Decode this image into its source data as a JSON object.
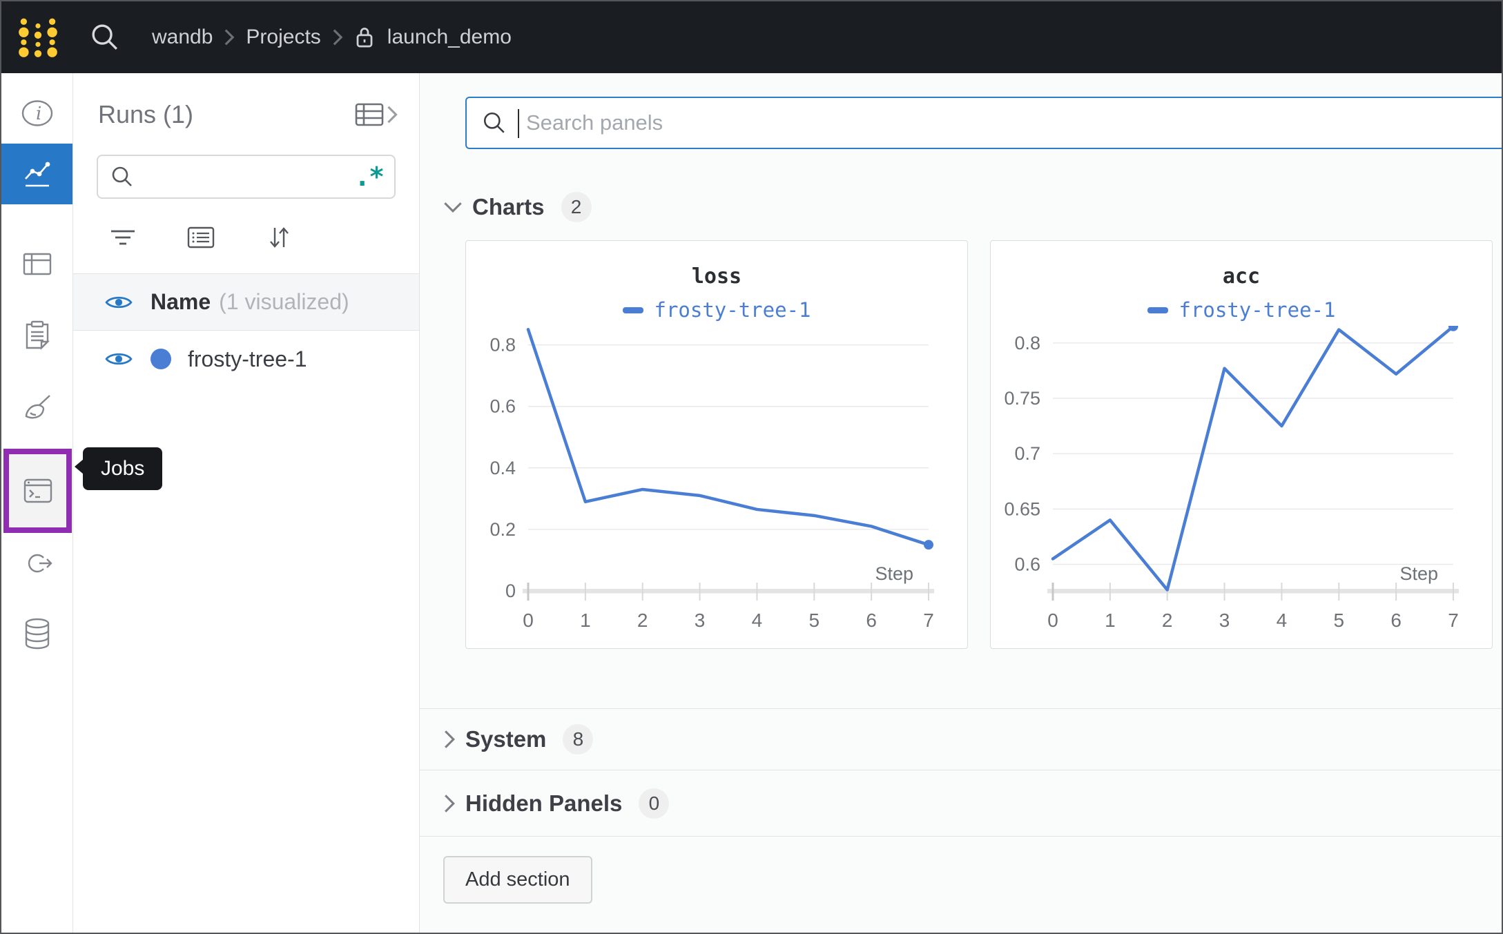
{
  "topbar": {
    "breadcrumb": {
      "entity": "wandb",
      "section": "Projects",
      "project": "launch_demo"
    }
  },
  "sidebar": {
    "tooltip": "Jobs",
    "items": [
      {
        "id": "overview",
        "icon": "info-icon"
      },
      {
        "id": "workspace",
        "icon": "line-chart-icon",
        "active": true
      },
      {
        "id": "runs-table",
        "icon": "table-icon"
      },
      {
        "id": "reports",
        "icon": "clipboard-icon"
      },
      {
        "id": "sweeps",
        "icon": "broom-icon"
      },
      {
        "id": "jobs",
        "icon": "terminal-icon",
        "highlighted": true
      },
      {
        "id": "automations",
        "icon": "run-arrow-icon"
      },
      {
        "id": "artifacts",
        "icon": "database-icon"
      }
    ]
  },
  "runs_panel": {
    "title": "Runs (1)",
    "search_value": "",
    "regex_glyph": ".*",
    "header_row": {
      "name_label": "Name",
      "visualized_label": "(1 visualized)"
    },
    "runs": [
      {
        "name": "frosty-tree-1",
        "color": "#4a7dd4",
        "visible": true
      }
    ]
  },
  "main": {
    "search_placeholder": "Search panels",
    "sections": [
      {
        "label": "Charts",
        "count": "2",
        "expanded": true
      },
      {
        "label": "System",
        "count": "8",
        "expanded": false
      },
      {
        "label": "Hidden Panels",
        "count": "0",
        "expanded": false
      }
    ],
    "add_section_label": "Add section"
  },
  "chart_data": [
    {
      "type": "line",
      "title": "loss",
      "xlabel": "Step",
      "x": [
        0,
        1,
        2,
        3,
        4,
        5,
        6,
        7
      ],
      "series": [
        {
          "name": "frosty-tree-1",
          "values": [
            0.85,
            0.29,
            0.33,
            0.31,
            0.265,
            0.245,
            0.21,
            0.15
          ]
        }
      ],
      "ylim": [
        0,
        0.835
      ],
      "yticks": [
        0,
        0.2,
        0.4,
        0.6,
        0.8
      ],
      "xticks": [
        0,
        1,
        2,
        3,
        4,
        5,
        6,
        7
      ],
      "line_color": "#4a7dd4",
      "grid": true,
      "legend_position": "top",
      "end_marker": true
    },
    {
      "type": "line",
      "title": "acc",
      "xlabel": "Step",
      "x": [
        0,
        1,
        2,
        3,
        4,
        5,
        6,
        7
      ],
      "series": [
        {
          "name": "frosty-tree-1",
          "values": [
            0.605,
            0.64,
            0.577,
            0.777,
            0.725,
            0.812,
            0.772,
            0.815
          ]
        }
      ],
      "ylim": [
        0.576,
        0.808
      ],
      "yticks": [
        0.6,
        0.65,
        0.7,
        0.75,
        0.8
      ],
      "xticks": [
        0,
        1,
        2,
        3,
        4,
        5,
        6,
        7
      ],
      "line_color": "#4a7dd4",
      "grid": true,
      "legend_position": "top",
      "end_marker": true
    }
  ],
  "colors": {
    "topbar_bg": "#1a1d21",
    "accent_blue": "#2878c8",
    "run_blue": "#4a7dd4",
    "highlight_purple": "#8f2eb3",
    "regex_teal": "#0c9a93",
    "logo_yellow": "#fecb33"
  }
}
